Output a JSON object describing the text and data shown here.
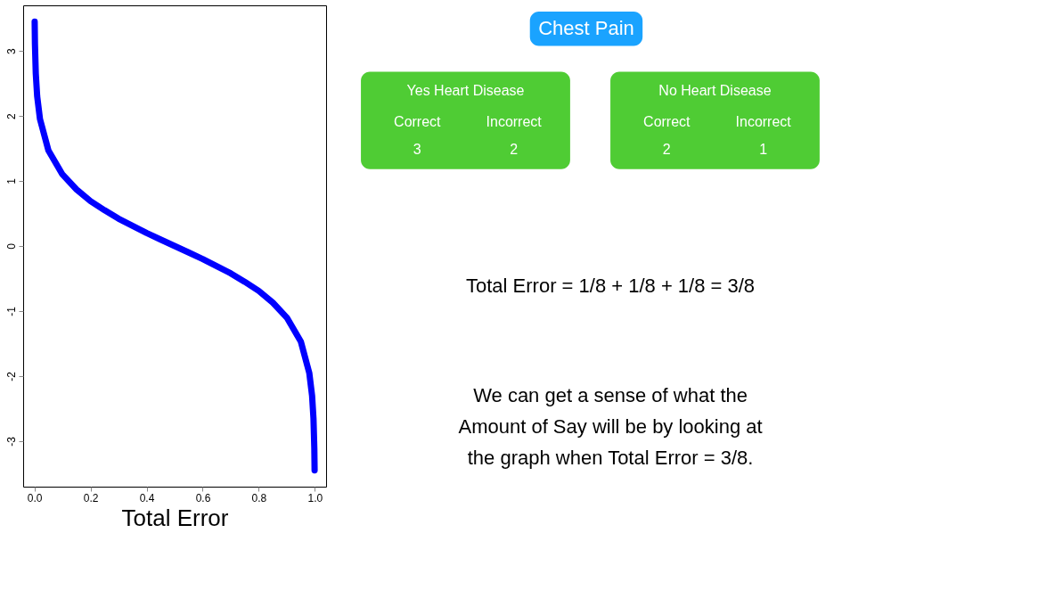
{
  "chart_data": {
    "type": "line",
    "xlabel": "Total Error",
    "series": [
      {
        "color": "#0000ff",
        "x": [
          0.001,
          0.002,
          0.005,
          0.01,
          0.02,
          0.05,
          0.1,
          0.15,
          0.2,
          0.25,
          0.3,
          0.35,
          0.4,
          0.45,
          0.5,
          0.55,
          0.6,
          0.65,
          0.7,
          0.75,
          0.8,
          0.85,
          0.9,
          0.95,
          0.98,
          0.99,
          0.995,
          0.998,
          0.999
        ],
        "values": [
          3.45,
          3.11,
          2.65,
          2.3,
          1.95,
          1.47,
          1.1,
          0.87,
          0.69,
          0.55,
          0.42,
          0.31,
          0.2,
          0.1,
          0.0,
          -0.1,
          -0.2,
          -0.31,
          -0.42,
          -0.55,
          -0.69,
          -0.87,
          -1.1,
          -1.47,
          -1.95,
          -2.3,
          -2.65,
          -3.11,
          -3.45
        ]
      }
    ],
    "xlim": [
      -0.04,
      1.04
    ],
    "xticks": [
      {
        "value": 0,
        "label": "0.0"
      },
      0.2,
      0.4,
      0.6,
      0.8,
      {
        "value": 1,
        "label": "1.0"
      }
    ],
    "ylim": [
      -3.7,
      3.7
    ],
    "yticks": [
      -3,
      -2,
      -1,
      0,
      1,
      2,
      3
    ],
    "grid": false,
    "line_style": "solid",
    "marker": "none",
    "annotations": [
      "Chest Pain",
      "Yes Heart Disease",
      "Correct",
      "Incorrect",
      "3",
      "2",
      "No Heart Disease",
      "Correct",
      "Incorrect",
      "2",
      "1",
      "Total Error = 1/8 + 1/8 + 1/8 = 3/8",
      "We can get a sense of what the",
      "Amount of Say will be by looking at",
      "the graph when Total Error = 3/8."
    ]
  }
}
